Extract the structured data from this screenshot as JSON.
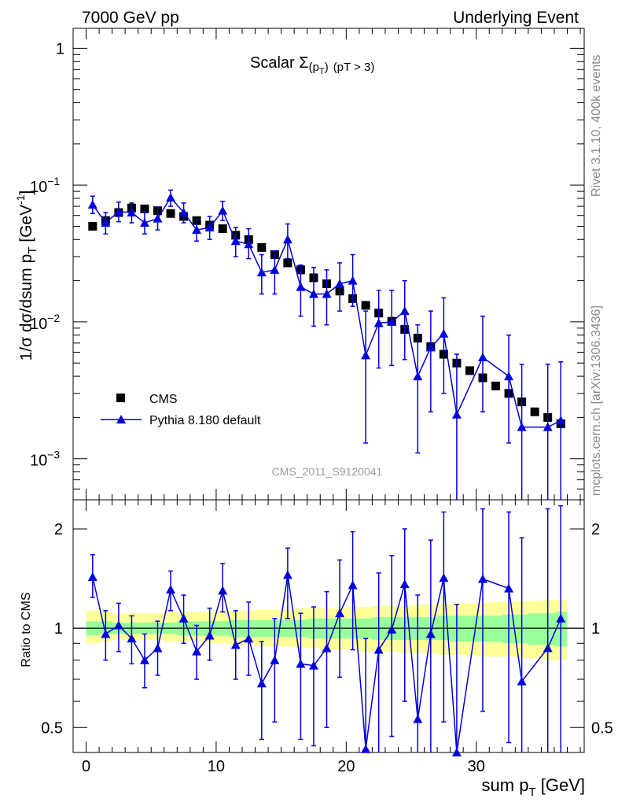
{
  "header": {
    "left": "7000 GeV pp",
    "right": "Underlying Event"
  },
  "side_text": {
    "upper": "Rivet 3.1.10,  400k events",
    "lower": "mcplots.cern.ch [arXiv:1306.3436]"
  },
  "colors": {
    "cms": "#000000",
    "pythia": "#0000dd",
    "band_outer": "#ffff99",
    "band_inner": "#99ff99",
    "line": "#000000"
  },
  "chart_data": {
    "type": "scatter",
    "title_main": "Scalar Σ",
    "title_sub": "(p",
    "title_sub_T": "T",
    "title_sub_end": ")",
    "title_rest": "(pT >  3)",
    "watermark": "CMS_2011_S9120041",
    "ylabel_main": "1/σ dσ/dsum p",
    "ylabel_sub": "T",
    "ylabel_unit": " [GeV",
    "ylabel_exp": "-1",
    "ylabel_end": "]",
    "ylabel_ratio": "Ratio to CMS",
    "xlabel_main": "sum p",
    "xlabel_sub": "T",
    "xlabel_unit": " [GeV]",
    "xlim": [
      -1,
      38.3
    ],
    "ylim": [
      0.0005,
      1.4
    ],
    "ratio_ylim": [
      0.42,
      2.45
    ],
    "x_ticks": [
      0,
      10,
      20,
      30
    ],
    "x_tick_labels": [
      "0",
      "10",
      "20",
      "30"
    ],
    "y_ticks": [
      {
        "label": "1",
        "base": "",
        "exp": ""
      },
      {
        "label": "",
        "base": "10",
        "exp": "−1"
      },
      {
        "label": "",
        "base": "10",
        "exp": "−2"
      },
      {
        "label": "",
        "base": "10",
        "exp": "−3"
      }
    ],
    "y_tick_values": [
      1,
      0.1,
      0.01,
      0.001
    ],
    "ratio_ticks": [
      2,
      1,
      0.5
    ],
    "ratio_tick_labels": [
      "2",
      "1",
      "0.5"
    ],
    "legend": [
      {
        "name": "CMS",
        "marker": "square"
      },
      {
        "name": "Pythia 8.180 default",
        "marker": "triangle"
      }
    ],
    "x": [
      0.5,
      1.5,
      2.5,
      3.5,
      4.5,
      5.5,
      6.5,
      7.5,
      8.5,
      9.5,
      10.5,
      11.5,
      12.5,
      13.5,
      14.5,
      15.5,
      16.5,
      17.5,
      18.5,
      19.5,
      20.5,
      21.5,
      22.5,
      23.5,
      24.5,
      25.5,
      26.5,
      27.5,
      28.5,
      29.5,
      30.5,
      31.5,
      32.5,
      33.5,
      34.5,
      35.5,
      36.5
    ],
    "series": [
      {
        "name": "CMS",
        "values": [
          0.05,
          0.055,
          0.063,
          0.068,
          0.067,
          0.065,
          0.062,
          0.059,
          0.055,
          0.051,
          0.048,
          0.043,
          0.04,
          0.035,
          0.031,
          0.027,
          0.024,
          0.021,
          0.019,
          0.0168,
          0.0148,
          0.0132,
          0.0116,
          0.0101,
          0.0088,
          0.0076,
          0.0066,
          0.0058,
          0.005,
          0.0044,
          0.0039,
          0.0034,
          0.003,
          0.0026,
          0.0022,
          0.002,
          0.0018
        ]
      },
      {
        "name": "Pythia 8.180 default",
        "values": [
          0.072,
          0.053,
          0.064,
          0.063,
          0.053,
          0.057,
          0.081,
          0.063,
          0.047,
          0.049,
          0.065,
          0.039,
          0.037,
          0.023,
          0.024,
          0.04,
          0.018,
          0.016,
          0.016,
          0.019,
          0.02,
          0.0057,
          0.0098,
          0.01,
          0.012,
          0.004,
          0.0065,
          0.0082,
          0.0021,
          null,
          0.0055,
          null,
          0.004,
          0.0017,
          null,
          0.0017,
          0.0019
        ],
        "err_up": [
          0.083,
          0.063,
          0.075,
          0.074,
          0.064,
          0.069,
          0.092,
          0.074,
          0.056,
          0.059,
          0.076,
          0.049,
          0.048,
          0.031,
          0.033,
          0.052,
          0.026,
          0.025,
          0.024,
          0.027,
          0.031,
          0.012,
          0.017,
          0.017,
          0.02,
          0.0095,
          0.012,
          0.015,
          0.0058,
          null,
          0.011,
          null,
          0.008,
          0.0049,
          null,
          0.0049,
          0.0051
        ],
        "err_down": [
          0.062,
          0.044,
          0.054,
          0.053,
          0.044,
          0.047,
          0.07,
          0.053,
          0.039,
          0.04,
          0.055,
          0.03,
          0.029,
          0.016,
          0.016,
          0.029,
          0.011,
          0.0093,
          0.0095,
          0.012,
          0.013,
          0.0013,
          0.0046,
          0.0048,
          0.0053,
          0.0011,
          0.0022,
          0.003,
          0.0003,
          null,
          0.0022,
          null,
          0.0013,
          0.0003,
          null,
          0.0003,
          0.0002
        ]
      }
    ],
    "ratio": {
      "values": [
        1.43,
        0.96,
        1.02,
        0.93,
        0.8,
        0.87,
        1.31,
        1.07,
        0.85,
        0.95,
        1.3,
        0.89,
        0.93,
        0.68,
        0.8,
        1.45,
        0.78,
        0.77,
        0.87,
        1.11,
        1.35,
        0.43,
        0.86,
        0.99,
        1.36,
        0.53,
        0.96,
        1.42,
        0.42,
        null,
        1.41,
        null,
        1.32,
        0.69,
        null,
        0.87,
        1.07
      ],
      "err_up": [
        1.67,
        1.13,
        1.19,
        1.09,
        0.96,
        1.05,
        1.49,
        1.26,
        1.02,
        1.15,
        1.57,
        1.13,
        1.2,
        0.91,
        1.07,
        1.75,
        1.11,
        1.16,
        1.29,
        1.61,
        1.96,
        0.93,
        1.47,
        1.66,
        2.0,
        1.26,
        1.85,
        2.25,
        1.18,
        null,
        2.3,
        null,
        2.25,
        1.88,
        null,
        2.3,
        2.35
      ],
      "err_down": [
        1.24,
        0.8,
        0.85,
        0.78,
        0.66,
        0.72,
        1.13,
        0.9,
        0.7,
        0.8,
        1.12,
        0.7,
        0.72,
        0.46,
        0.52,
        1.07,
        0.46,
        0.44,
        0.5,
        0.71,
        0.86,
        0.09,
        0.4,
        0.47,
        0.6,
        0.14,
        0.33,
        0.52,
        0.06,
        null,
        0.56,
        null,
        0.45,
        0.12,
        null,
        0.14,
        0.1
      ],
      "band_outer_lo": [
        0.9,
        0.91,
        0.92,
        0.92,
        0.92,
        0.92,
        0.91,
        0.91,
        0.91,
        0.9,
        0.9,
        0.89,
        0.89,
        0.88,
        0.88,
        0.88,
        0.87,
        0.87,
        0.86,
        0.86,
        0.86,
        0.85,
        0.85,
        0.85,
        0.84,
        0.84,
        0.84,
        0.83,
        0.83,
        0.83,
        0.82,
        0.82,
        0.82,
        0.81,
        0.81,
        0.8,
        0.8
      ],
      "band_outer_hi": [
        1.13,
        1.12,
        1.11,
        1.11,
        1.11,
        1.11,
        1.12,
        1.12,
        1.12,
        1.12,
        1.13,
        1.13,
        1.13,
        1.14,
        1.14,
        1.14,
        1.15,
        1.15,
        1.15,
        1.15,
        1.16,
        1.16,
        1.17,
        1.17,
        1.17,
        1.18,
        1.18,
        1.18,
        1.19,
        1.19,
        1.19,
        1.2,
        1.2,
        1.21,
        1.21,
        1.22,
        1.22
      ],
      "band_inner_lo": [
        0.95,
        0.96,
        0.96,
        0.96,
        0.96,
        0.96,
        0.96,
        0.95,
        0.95,
        0.95,
        0.95,
        0.94,
        0.94,
        0.94,
        0.94,
        0.94,
        0.94,
        0.93,
        0.93,
        0.93,
        0.93,
        0.93,
        0.92,
        0.92,
        0.92,
        0.92,
        0.92,
        0.92,
        0.91,
        0.91,
        0.91,
        0.91,
        0.9,
        0.9,
        0.89,
        0.89,
        0.88
      ],
      "band_inner_hi": [
        1.05,
        1.05,
        1.04,
        1.04,
        1.04,
        1.04,
        1.04,
        1.05,
        1.05,
        1.05,
        1.05,
        1.06,
        1.06,
        1.06,
        1.06,
        1.06,
        1.06,
        1.07,
        1.07,
        1.07,
        1.07,
        1.07,
        1.08,
        1.08,
        1.08,
        1.08,
        1.08,
        1.09,
        1.09,
        1.09,
        1.09,
        1.09,
        1.1,
        1.1,
        1.11,
        1.11,
        1.12
      ]
    }
  }
}
